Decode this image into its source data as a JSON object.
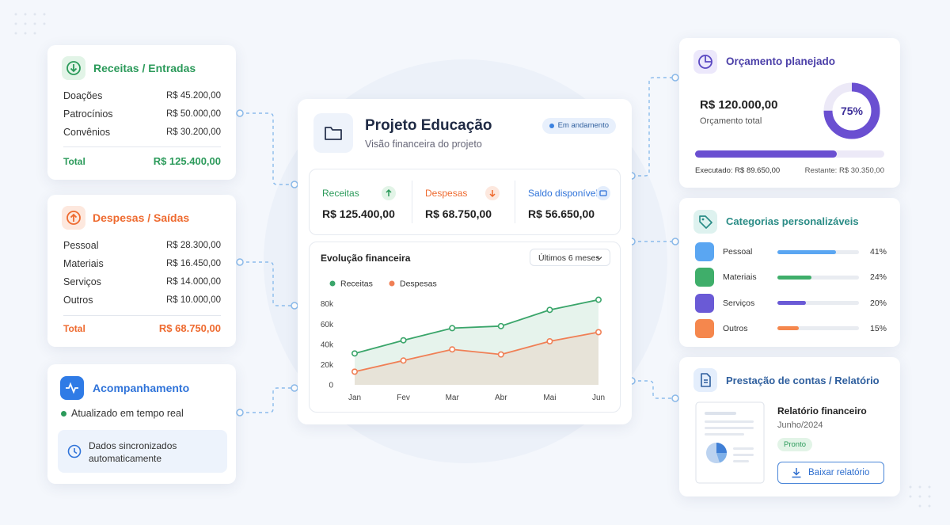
{
  "income_card": {
    "title": "Receitas / Entradas",
    "rows": [
      {
        "label": "Doações",
        "amount": "R$ 45.200,00"
      },
      {
        "label": "Patrocínios",
        "amount": "R$ 50.000,00"
      },
      {
        "label": "Convênios",
        "amount": "R$ 30.200,00"
      }
    ],
    "total_label": "Total",
    "total": "R$ 125.400,00"
  },
  "expense_card": {
    "title": "Despesas / Saídas",
    "rows": [
      {
        "label": "Pessoal",
        "amount": "R$ 28.300,00"
      },
      {
        "label": "Materiais",
        "amount": "R$ 16.450,00"
      },
      {
        "label": "Serviços",
        "amount": "R$ 14.000,00"
      },
      {
        "label": "Outros",
        "amount": "R$ 10.000,00"
      }
    ],
    "total_label": "Total",
    "total": "R$ 68.750,00"
  },
  "tracking_card": {
    "title": "Acompanhamento",
    "status": "Atualizado em tempo real",
    "note": "Dados sincronizados automaticamente"
  },
  "main_card": {
    "title": "Projeto Educação",
    "subtitle": "Visão financeira do projeto",
    "badge": "Em andamento",
    "summary": [
      {
        "label": "Receitas",
        "amount": "R$ 125.400,00"
      },
      {
        "label": "Despesas",
        "amount": "R$ 68.750,00"
      },
      {
        "label": "Saldo disponível",
        "amount": "R$ 56.650,00"
      }
    ],
    "chart": {
      "type": "line",
      "title": "Evolução financeira",
      "filter": "Últimos 6 meses",
      "categories": [
        "Jan",
        "Fev",
        "Mar",
        "Abr",
        "Mai",
        "Jun"
      ],
      "series": [
        {
          "name": "Receitas",
          "color": "#3aa56a",
          "values": [
            31,
            44,
            56,
            58,
            74,
            84
          ]
        },
        {
          "name": "Despesas",
          "color": "#f07f55",
          "values": [
            13,
            24,
            35,
            30,
            43,
            52
          ]
        }
      ],
      "ylim": [
        0,
        86
      ],
      "yticks": [
        0,
        {
          "value": 20,
          "label": "20k"
        },
        {
          "value": 40,
          "label": "40k"
        },
        {
          "value": 60,
          "label": "60k"
        },
        {
          "value": 80,
          "label": "80k"
        }
      ]
    }
  },
  "budget_card": {
    "title": "Orçamento planejado",
    "amount": "R$ 120.000,00",
    "amount_label": "Orçamento total",
    "percent": 75,
    "percent_label": "75%",
    "color": "#6a4fd1",
    "executed": "Executado: R$ 89.650,00",
    "remaining": "Restante: R$ 30.350,00"
  },
  "categories_card": {
    "title": "Categorias personalizáveis",
    "items": [
      {
        "name": "Pessoal",
        "value": 41,
        "value_label": "41%",
        "color": "#5aa6f2"
      },
      {
        "name": "Materiais",
        "value": 24,
        "value_label": "24%",
        "color": "#3fae6a"
      },
      {
        "name": "Serviços",
        "value": 20,
        "value_label": "20%",
        "color": "#6a5ad6"
      },
      {
        "name": "Outros",
        "value": 15,
        "value_label": "15%",
        "color": "#f5874d"
      }
    ]
  },
  "report_card": {
    "title": "Prestação de contas / Relatório",
    "doc_title": "Relatório financeiro",
    "period": "Junho/2024",
    "status": "Pronto",
    "button": "Baixar relatório"
  }
}
